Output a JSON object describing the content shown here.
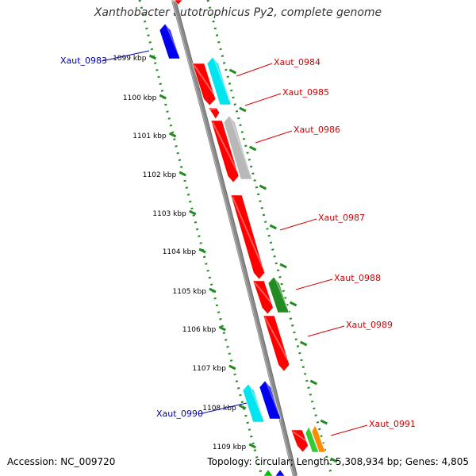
{
  "header": {
    "title": "Xanthobacter autotrophicus Py2, complete genome"
  },
  "footer": {
    "accession": "Accession: NC_009720",
    "summary": "Topology: circular; Length: 5,308,934 bp; Genes: 4,805"
  },
  "colors": {
    "backbone": "#8a8a8a",
    "ticks": "#228b22",
    "label_red": "#d40000",
    "label_blue": "#0000b0"
  },
  "scale": {
    "unit": "kbp",
    "ticks": [
      {
        "label": "1099 kbp"
      },
      {
        "label": "1100 kbp"
      },
      {
        "label": "1101 kbp"
      },
      {
        "label": "1102 kbp"
      },
      {
        "label": "1103 kbp"
      },
      {
        "label": "1104 kbp"
      },
      {
        "label": "1105 kbp"
      },
      {
        "label": "1106 kbp"
      },
      {
        "label": "1107 kbp"
      },
      {
        "label": "1108 kbp"
      },
      {
        "label": "1109 kbp"
      }
    ]
  },
  "genes": [
    {
      "label": "Xaut_0983",
      "color": "#0000ee",
      "side": "left"
    },
    {
      "label": "Xaut_0984",
      "color": "#ff0000",
      "side": "right"
    },
    {
      "label": "Xaut_0985",
      "color": "#ff0000",
      "side": "right"
    },
    {
      "label": "Xaut_0986",
      "color": "#ff0000",
      "side": "right"
    },
    {
      "label": "Xaut_0987",
      "color": "#ff0000",
      "side": "right"
    },
    {
      "label": "Xaut_0988",
      "color": "#ff0000",
      "side": "right"
    },
    {
      "label": "Xaut_0989",
      "color": "#ff0000",
      "side": "right"
    },
    {
      "label": "Xaut_0990",
      "color": "#0000ee",
      "side": "left"
    },
    {
      "label": "Xaut_0991",
      "color": "#ff0000",
      "side": "right"
    }
  ],
  "features": [
    {
      "color": "#00e5ee"
    },
    {
      "color": "#b8b8b8"
    },
    {
      "color": "#228b22"
    },
    {
      "color": "#00e5ee"
    },
    {
      "color": "#32cd32"
    },
    {
      "color": "#ff8c00"
    },
    {
      "color": "#00c000"
    },
    {
      "color": "#0000ee"
    }
  ]
}
